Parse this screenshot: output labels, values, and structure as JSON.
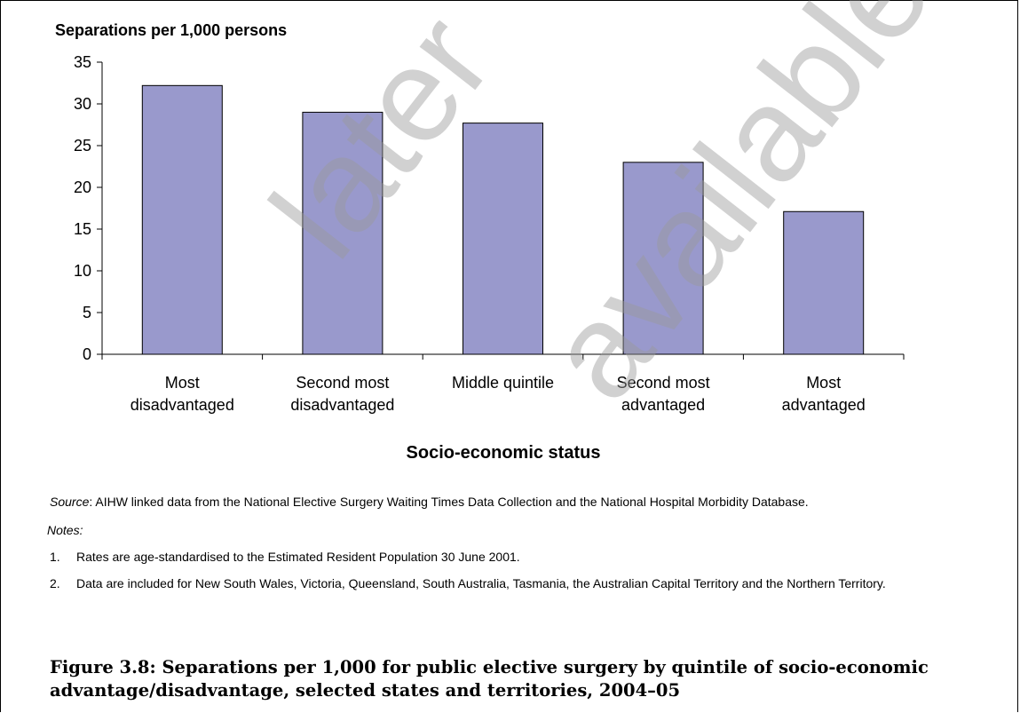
{
  "chart_data": {
    "type": "bar",
    "ylabel": "Separations per 1,000 persons",
    "xlabel": "Socio-economic status",
    "categories": [
      [
        "Most",
        "disadvantaged"
      ],
      [
        "Second most",
        "disadvantaged"
      ],
      [
        "Middle quintile"
      ],
      [
        "Second most",
        "advantaged"
      ],
      [
        "Most",
        "advantaged"
      ]
    ],
    "values": [
      32.2,
      29.0,
      27.7,
      23.0,
      17.1
    ],
    "ylim": [
      0,
      35
    ],
    "yticks": [
      0,
      5,
      10,
      15,
      20,
      25,
      30,
      35
    ],
    "bar_color": "#9999cc",
    "grid": false,
    "legend": "none"
  },
  "watermark": {
    "words": [
      "later",
      "available"
    ]
  },
  "source": {
    "key": "Source",
    "text": ": AIHW linked data from the National Elective Surgery Waiting Times Data Collection and the National Hospital Morbidity Database."
  },
  "notes_heading": "Notes",
  "notes": [
    {
      "num": "1.",
      "text": "Rates are age-standardised to the Estimated Resident Population 30 June 2001."
    },
    {
      "num": "2.",
      "text": "Data are included for New South Wales, Victoria, Queensland, South Australia, Tasmania, the Australian Capital Territory and the Northern Territory."
    }
  ],
  "caption": "Figure 3.8: Separations per 1,000 for public elective surgery by quintile of socio-economic advantage/disadvantage, selected states and territories, 2004–05"
}
